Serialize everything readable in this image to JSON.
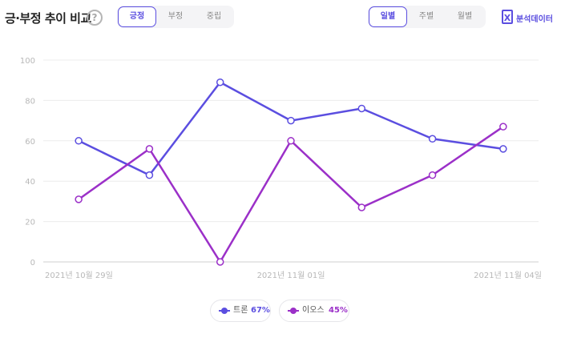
{
  "header": {
    "title": "긍·부정 추이 비교",
    "help_icon": "question-circle-icon",
    "sentiment_tabs": [
      {
        "label": "긍정",
        "active": true
      },
      {
        "label": "부정",
        "active": false
      },
      {
        "label": "중립",
        "active": false
      }
    ],
    "period_tabs": [
      {
        "label": "일별",
        "active": true
      },
      {
        "label": "주별",
        "active": false
      },
      {
        "label": "월별",
        "active": false
      }
    ],
    "export": {
      "icon": "excel-icon",
      "icon_glyph": "X",
      "label": "분석데이터"
    }
  },
  "legend": [
    {
      "name": "트론",
      "pct": "67%",
      "color": "#5b4ee0"
    },
    {
      "name": "이오스",
      "pct": "45%",
      "color": "#9b30c8"
    }
  ],
  "chart_data": {
    "type": "line",
    "x": [
      "2021-10-29",
      "2021-10-30",
      "2021-10-31",
      "2021-11-01",
      "2021-11-02",
      "2021-11-03",
      "2021-11-04"
    ],
    "x_tick_labels": [
      "2021년 10월 29일",
      "2021년 11월 01일",
      "2021년 11월 04일"
    ],
    "x_tick_indices": [
      0,
      3,
      6
    ],
    "ylim": [
      0,
      100
    ],
    "yticks": [
      0,
      20,
      40,
      60,
      80,
      100
    ],
    "grid": true,
    "legend_position": "bottom",
    "series": [
      {
        "name": "트론",
        "color": "#5b4ee0",
        "values": [
          60,
          43,
          89,
          70,
          76,
          61,
          56
        ]
      },
      {
        "name": "이오스",
        "color": "#9b30c8",
        "values": [
          31,
          56,
          0,
          60,
          27,
          43,
          67
        ]
      }
    ]
  }
}
